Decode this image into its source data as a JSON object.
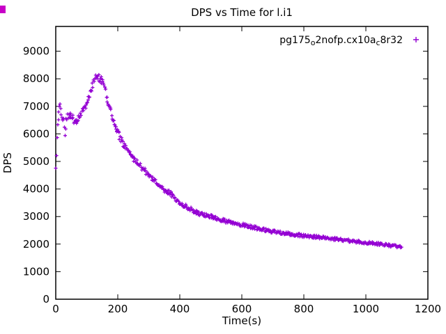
{
  "title": "DPS vs Time for l.i1",
  "legend": {
    "full_label": "pg175_o2nofp.cx10a_c8r32",
    "seg1": "pg175",
    "seg2": "o",
    "seg3": "2nofp.cx10a",
    "seg4": "c",
    "seg5": "8r32",
    "marker": "plus",
    "color": "#9400d3",
    "position": "top-right-inside"
  },
  "chart_data": {
    "type": "scatter",
    "title": "DPS vs Time for l.i1",
    "xlabel": "Time(s)",
    "ylabel": "DPS",
    "xlim": [
      0,
      1200
    ],
    "ylim": [
      0,
      9900
    ],
    "xticks": [
      0,
      200,
      400,
      600,
      800,
      1000,
      1200
    ],
    "yticks": [
      0,
      1000,
      2000,
      3000,
      4000,
      5000,
      6000,
      7000,
      8000,
      9000
    ],
    "grid": false,
    "legend_position": "top-right-inside",
    "series": [
      {
        "name": "pg175_o2nofp.cx10a_c8r32",
        "marker": "+",
        "color": "#9400d3",
        "points": [
          [
            0,
            4700
          ],
          [
            2,
            5200
          ],
          [
            4,
            5800
          ],
          [
            6,
            6300
          ],
          [
            8,
            6600
          ],
          [
            10,
            6900
          ],
          [
            14,
            7000
          ],
          [
            18,
            6800
          ],
          [
            22,
            6600
          ],
          [
            26,
            6550
          ],
          [
            30,
            5950
          ],
          [
            34,
            6600
          ],
          [
            40,
            6650
          ],
          [
            46,
            6700
          ],
          [
            52,
            6600
          ],
          [
            58,
            6500
          ],
          [
            64,
            6450
          ],
          [
            70,
            6500
          ],
          [
            76,
            6600
          ],
          [
            82,
            6700
          ],
          [
            88,
            6850
          ],
          [
            94,
            7000
          ],
          [
            100,
            7150
          ],
          [
            106,
            7300
          ],
          [
            112,
            7500
          ],
          [
            118,
            7750
          ],
          [
            124,
            7950
          ],
          [
            130,
            8050
          ],
          [
            136,
            8100
          ],
          [
            142,
            8000
          ],
          [
            148,
            7950
          ],
          [
            152,
            7900
          ],
          [
            156,
            7800
          ],
          [
            160,
            7600
          ],
          [
            165,
            7350
          ],
          [
            170,
            7100
          ],
          [
            175,
            6900
          ],
          [
            180,
            6700
          ],
          [
            185,
            6500
          ],
          [
            190,
            6350
          ],
          [
            195,
            6200
          ],
          [
            200,
            6050
          ],
          [
            210,
            5800
          ],
          [
            220,
            5600
          ],
          [
            230,
            5400
          ],
          [
            240,
            5250
          ],
          [
            250,
            5100
          ],
          [
            260,
            5000
          ],
          [
            270,
            4900
          ],
          [
            280,
            4750
          ],
          [
            290,
            4650
          ],
          [
            300,
            4500
          ],
          [
            310,
            4400
          ],
          [
            320,
            4300
          ],
          [
            330,
            4200
          ],
          [
            340,
            4050
          ],
          [
            350,
            3950
          ],
          [
            360,
            3900
          ],
          [
            370,
            3850
          ],
          [
            380,
            3700
          ],
          [
            390,
            3600
          ],
          [
            400,
            3500
          ],
          [
            415,
            3400
          ],
          [
            430,
            3300
          ],
          [
            445,
            3200
          ],
          [
            460,
            3120
          ],
          [
            475,
            3070
          ],
          [
            490,
            3020
          ],
          [
            505,
            2980
          ],
          [
            520,
            2930
          ],
          [
            535,
            2880
          ],
          [
            550,
            2830
          ],
          [
            565,
            2790
          ],
          [
            580,
            2750
          ],
          [
            600,
            2700
          ],
          [
            620,
            2650
          ],
          [
            640,
            2600
          ],
          [
            660,
            2550
          ],
          [
            680,
            2500
          ],
          [
            700,
            2460
          ],
          [
            720,
            2420
          ],
          [
            740,
            2390
          ],
          [
            760,
            2360
          ],
          [
            780,
            2330
          ],
          [
            800,
            2300
          ],
          [
            820,
            2280
          ],
          [
            840,
            2260
          ],
          [
            860,
            2230
          ],
          [
            880,
            2200
          ],
          [
            900,
            2180
          ],
          [
            920,
            2150
          ],
          [
            940,
            2130
          ],
          [
            960,
            2100
          ],
          [
            980,
            2080
          ],
          [
            1000,
            2060
          ],
          [
            1020,
            2030
          ],
          [
            1040,
            2010
          ],
          [
            1060,
            1980
          ],
          [
            1080,
            1950
          ],
          [
            1100,
            1920
          ],
          [
            1115,
            1890
          ]
        ]
      }
    ]
  }
}
